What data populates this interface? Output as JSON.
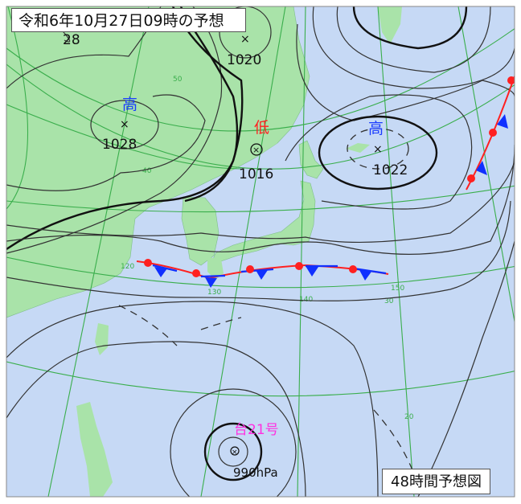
{
  "header": {
    "title": "令和6年10月27日09時の予想"
  },
  "footer": {
    "chart_label": "48時間予想図"
  },
  "colors": {
    "land": "#a9e3a9",
    "sea": "#c6d9f5",
    "grid": "#3aae4c",
    "high": "#1a3cff",
    "low": "#ff2020",
    "typhoon": "#ff30e0",
    "warm_front": "#ff2020",
    "cold_front": "#1030ff"
  },
  "systems": {
    "high_west": {
      "kanji": "高",
      "pressure": "1028"
    },
    "high_north": {
      "pressure": "1020"
    },
    "low_sakhalin": {
      "kanji": "低",
      "pressure": "1016"
    },
    "high_east": {
      "kanji": "高",
      "pressure": "1022"
    },
    "typhoon": {
      "name": "台21号",
      "pressure": "990hPa"
    },
    "partial_label": "28"
  },
  "grid_labels": {
    "lat": [
      "50",
      "40",
      "30",
      "20"
    ],
    "lon": [
      "120",
      "130",
      "140",
      "150"
    ]
  },
  "fronts": [
    "stationary",
    "cold"
  ]
}
